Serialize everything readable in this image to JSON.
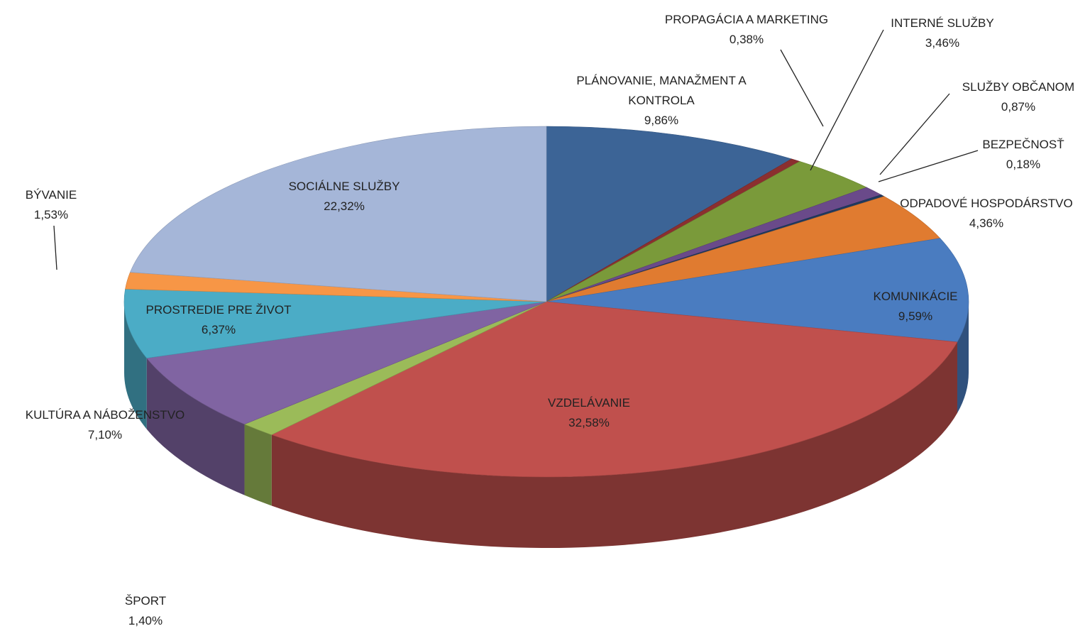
{
  "chart_data": {
    "type": "pie3d",
    "categories": [
      "PLÁNOVANIE, MANAŽMENT A KONTROLA",
      "PROPAGÁCIA A MARKETING",
      "INTERNÉ SLUŽBY",
      "SLUŽBY OBČANOM",
      "BEZPEČNOSŤ",
      "ODPADOVÉ HOSPODÁRSTVO",
      "KOMUNIKÁCIE",
      "VZDELÁVANIE",
      "ŠPORT",
      "KULTÚRA A NÁBOŽENSTVO",
      "PROSTREDIE PRE ŽIVOT",
      "BÝVANIE",
      "SOCIÁLNE SLUŽBY"
    ],
    "values": [
      9.86,
      0.38,
      3.46,
      0.87,
      0.18,
      4.36,
      9.59,
      32.58,
      1.4,
      7.1,
      6.37,
      1.53,
      22.32
    ],
    "value_labels": [
      "9,86%",
      "0,38%",
      "3,46%",
      "0,87%",
      "0,18%",
      "4,36%",
      "9,59%",
      "32,58%",
      "1,40%",
      "7,10%",
      "6,37%",
      "1,53%",
      "22,32%"
    ],
    "colors": [
      "#3c6496",
      "#8b2f2f",
      "#7a9a3a",
      "#6a4a8a",
      "#1f3a5f",
      "#e07b30",
      "#4a7cc0",
      "#c0504d",
      "#9bbb59",
      "#8064a2",
      "#4bacc6",
      "#f79646",
      "#a5b6d8"
    ]
  }
}
